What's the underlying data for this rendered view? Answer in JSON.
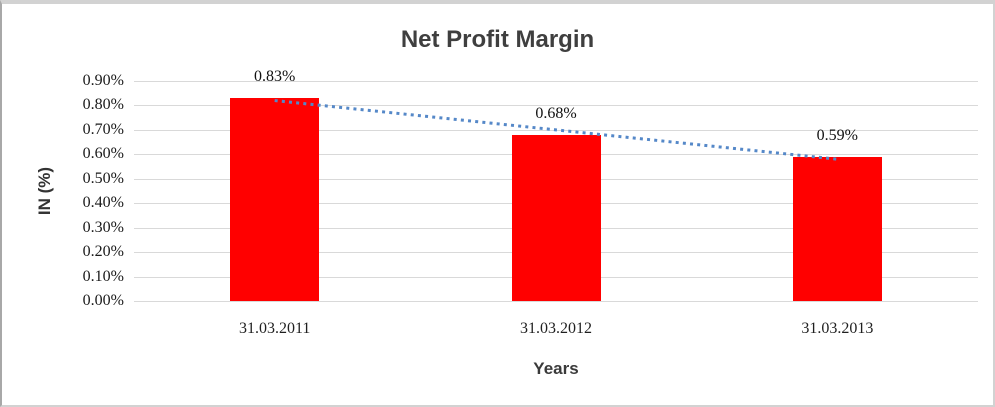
{
  "chart_data": {
    "type": "bar",
    "title": "Net Profit Margin",
    "xlabel": "Years",
    "ylabel": "IN (%)",
    "categories": [
      "31.03.2011",
      "31.03.2012",
      "31.03.2013"
    ],
    "values": [
      0.83,
      0.68,
      0.59
    ],
    "data_labels": [
      "0.83%",
      "0.68%",
      "0.59%"
    ],
    "ylim": [
      0,
      0.9
    ],
    "ytick_step": 0.1,
    "ytick_labels": [
      "0.90%",
      "0.80%",
      "0.70%",
      "0.60%",
      "0.50%",
      "0.40%",
      "0.30%",
      "0.20%",
      "0.10%",
      "0.00%"
    ],
    "grid": "horizontal",
    "legend": "none",
    "bar_color": "#FF0000",
    "gridline_color": "#D9D9D9",
    "title_color": "#3F3F3F",
    "trendline": {
      "type": "linear",
      "style": "dotted",
      "color": "#5588C8",
      "start_value": 0.82,
      "end_value": 0.58
    }
  }
}
